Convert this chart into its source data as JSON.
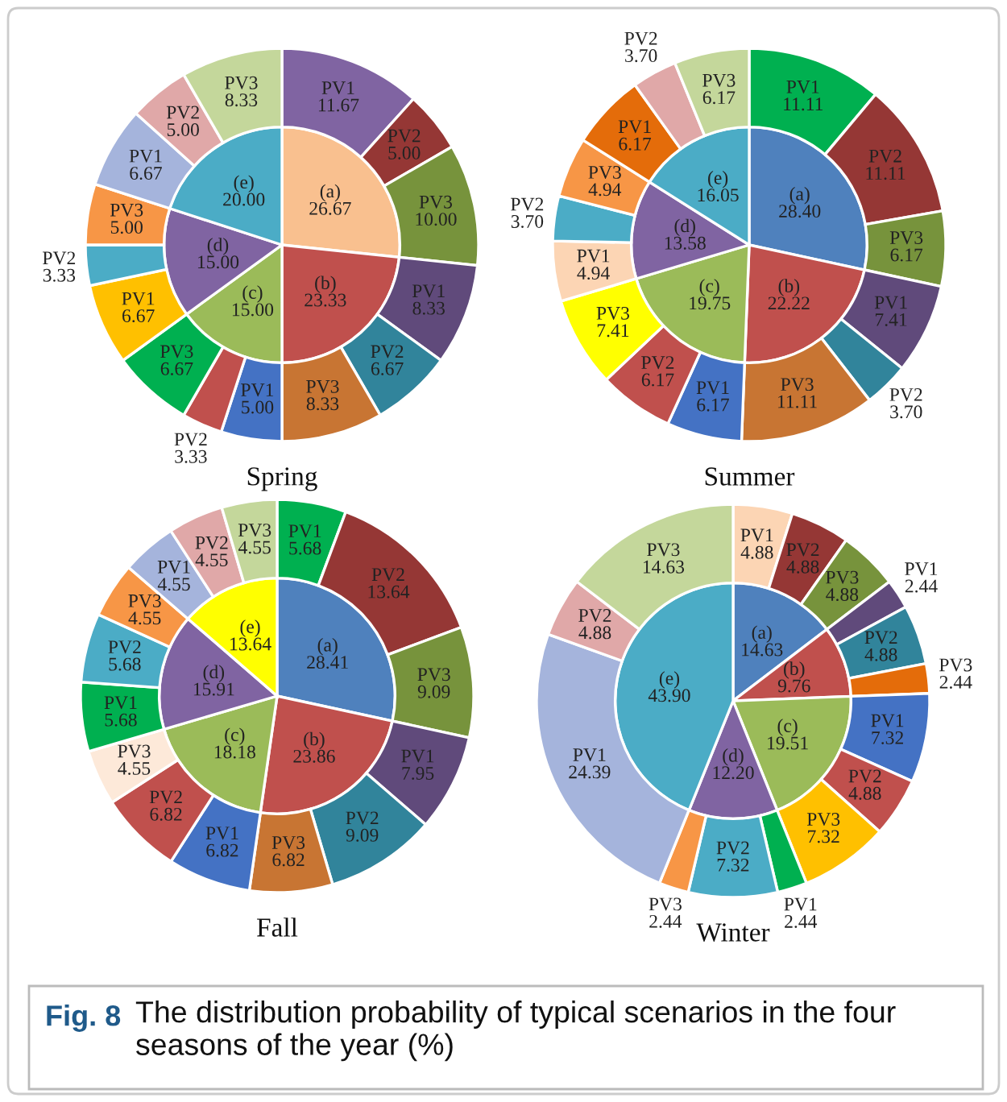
{
  "chart_data": [
    {
      "type": "pie",
      "title": "Spring",
      "series": [
        {
          "values": [
            26.67,
            23.33,
            15.0,
            15.0,
            20.0
          ],
          "value_labels": [
            "(a)\n26.67",
            "(b)\n23.33",
            "(c)\n15.00",
            "(d)\n15.00",
            "(e)\n20.00"
          ],
          "colors": [
            "#f9c08f",
            "#c0504d",
            "#9bbb59",
            "#8064a2",
            "#4bacc6"
          ]
        },
        {
          "values": [
            11.67,
            5.0,
            10.0,
            8.33,
            6.67,
            8.33,
            5.0,
            3.33,
            6.67,
            6.67,
            3.33,
            5.0,
            6.67,
            5.0,
            8.33
          ],
          "value_labels": [
            "PV1\n11.67",
            "PV2\n5.00",
            "PV3\n10.00",
            "PV1\n8.33",
            "PV2\n6.67",
            "PV3\n8.33",
            "PV1\n5.00",
            "PV2\n3.33",
            "PV3\n6.67",
            "PV1\n6.67",
            "PV2\n3.33",
            "PV3\n5.00",
            "PV1\n6.67",
            "PV2\n5.00",
            "PV3\n8.33"
          ],
          "colors": [
            "#8064a2",
            "#953735",
            "#77933c",
            "#604a7b",
            "#31849b",
            "#c87533",
            "#4472c4",
            "#c0504d",
            "#00b050",
            "#ffc000",
            "#4bacc6",
            "#f79646",
            "#a5b4dc",
            "#e0a8a8",
            "#c4d79b"
          ]
        }
      ]
    },
    {
      "type": "pie",
      "title": "Summer",
      "series": [
        {
          "values": [
            28.4,
            22.22,
            19.75,
            13.58,
            16.05
          ],
          "value_labels": [
            "(a)\n28.40",
            "(b)\n22.22",
            "(c)\n19.75",
            "(d)\n13.58",
            "(e)\n16.05"
          ],
          "colors": [
            "#4f81bd",
            "#c0504d",
            "#9bbb59",
            "#8064a2",
            "#4bacc6"
          ]
        },
        {
          "values": [
            11.11,
            11.11,
            6.17,
            7.41,
            3.7,
            11.11,
            6.17,
            6.17,
            7.41,
            4.94,
            3.7,
            4.94,
            6.17,
            3.7,
            6.17
          ],
          "value_labels": [
            "PV1\n11.11",
            "PV2\n11.11",
            "PV3\n6.17",
            "PV1\n7.41",
            "PV2\n3.70",
            "PV3\n11.11",
            "PV1\n6.17",
            "PV2\n6.17",
            "PV3\n7.41",
            "PV1\n4.94",
            "PV2\n3.70",
            "PV3\n4.94",
            "PV1\n6.17",
            "PV2\n3.70",
            "PV3\n6.17"
          ],
          "colors": [
            "#00b050",
            "#953735",
            "#77933c",
            "#604a7b",
            "#31849b",
            "#c87533",
            "#4472c4",
            "#c0504d",
            "#ffff00",
            "#fcd5b4",
            "#4bacc6",
            "#f79646",
            "#e46c0a",
            "#e0a8a8",
            "#c4d79b"
          ]
        }
      ]
    },
    {
      "type": "pie",
      "title": "Fall",
      "series": [
        {
          "values": [
            28.41,
            23.86,
            18.18,
            15.91,
            13.64
          ],
          "value_labels": [
            "(a)\n28.41",
            "(b)\n23.86",
            "(c)\n18.18",
            "(d)\n15.91",
            "(e)\n13.64"
          ],
          "colors": [
            "#4f81bd",
            "#c0504d",
            "#9bbb59",
            "#8064a2",
            "#ffff00"
          ]
        },
        {
          "values": [
            5.68,
            13.64,
            9.09,
            7.95,
            9.09,
            6.82,
            6.82,
            6.82,
            4.55,
            5.68,
            5.68,
            4.55,
            4.55,
            4.55,
            4.55
          ],
          "value_labels": [
            "PV1\n5.68",
            "PV2\n13.64",
            "PV3\n9.09",
            "PV1\n7.95",
            "PV2\n9.09",
            "PV3\n6.82",
            "PV1\n6.82",
            "PV2\n6.82",
            "PV3\n4.55",
            "PV1\n5.68",
            "PV2\n5.68",
            "PV3\n4.55",
            "PV1\n4.55",
            "PV2\n4.55",
            "PV3\n4.55"
          ],
          "colors": [
            "#00b050",
            "#953735",
            "#77933c",
            "#604a7b",
            "#31849b",
            "#c87533",
            "#4472c4",
            "#c0504d",
            "#fde9d9",
            "#00b050",
            "#4bacc6",
            "#f79646",
            "#a5b4dc",
            "#e0a8a8",
            "#c4d79b"
          ]
        }
      ]
    },
    {
      "type": "pie",
      "title": "Winter",
      "annotations": [
        "Fig. 8",
        "The distribution probability of typical scenarios in the four seasons of the year (%)"
      ],
      "series": [
        {
          "values": [
            14.63,
            9.76,
            19.51,
            12.2,
            43.9
          ],
          "value_labels": [
            "(a)\n14.63",
            "(b)\n9.76",
            "(c)\n19.51",
            "(d)\n12.20",
            "(e)\n43.90"
          ],
          "colors": [
            "#4f81bd",
            "#c0504d",
            "#9bbb59",
            "#8064a2",
            "#4bacc6"
          ]
        },
        {
          "values": [
            4.88,
            4.88,
            4.88,
            2.44,
            4.88,
            2.44,
            7.32,
            4.88,
            7.32,
            2.44,
            7.32,
            2.44,
            24.39,
            4.88,
            14.63
          ],
          "value_labels": [
            "PV1\n4.88",
            "PV2\n4.88",
            "PV3\n4.88",
            "PV1\n2.44",
            "PV2\n4.88",
            "PV3\n2.44",
            "PV1\n7.32",
            "PV2\n4.88",
            "PV3\n7.32",
            "PV1\n2.44",
            "PV2\n7.32",
            "PV3\n2.44",
            "PV1\n24.39",
            "PV2\n4.88",
            "PV3\n14.63"
          ],
          "colors": [
            "#fcd5b4",
            "#953735",
            "#77933c",
            "#604a7b",
            "#31849b",
            "#e46c0a",
            "#4472c4",
            "#c0504d",
            "#ffc000",
            "#00b050",
            "#4bacc6",
            "#f79646",
            "#a5b4dc",
            "#e0a8a8",
            "#c4d79b"
          ]
        }
      ]
    }
  ]
}
